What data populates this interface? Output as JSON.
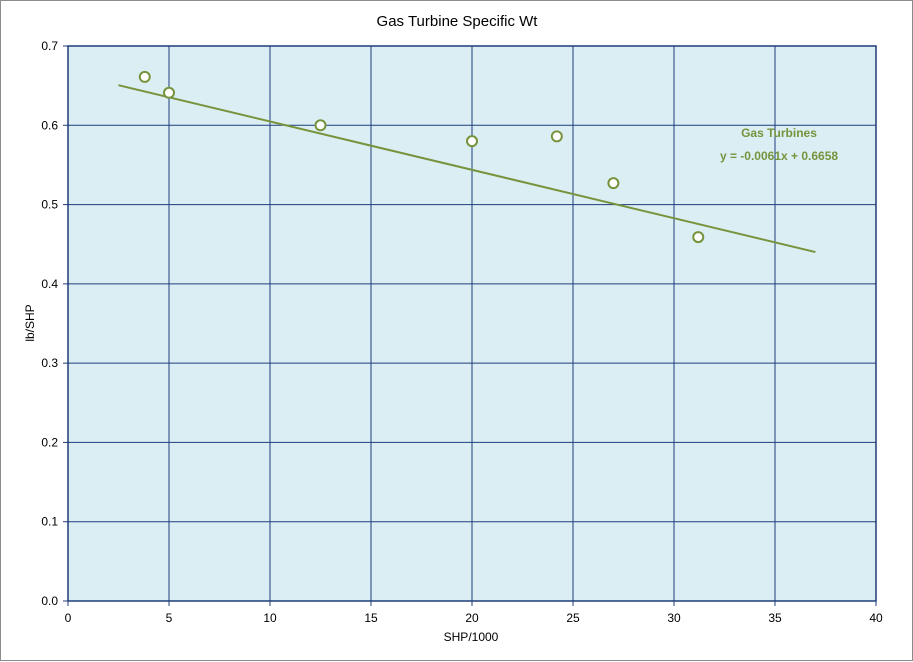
{
  "chart_data": {
    "type": "scatter",
    "title": "Gas Turbine Specific Wt",
    "xlabel": "SHP/1000",
    "ylabel": "lb/SHP",
    "xlim": [
      0,
      40
    ],
    "ylim": [
      0,
      0.7
    ],
    "x_ticks": [
      "0",
      "5",
      "10",
      "15",
      "20",
      "25",
      "30",
      "35",
      "40"
    ],
    "y_ticks": [
      "0.0",
      "0.1",
      "0.2",
      "0.3",
      "0.4",
      "0.5",
      "0.6",
      "0.7"
    ],
    "grid": true,
    "series": [
      {
        "points": [
          {
            "x": 3.8,
            "y": 0.661
          },
          {
            "x": 5.0,
            "y": 0.641
          },
          {
            "x": 12.5,
            "y": 0.6
          },
          {
            "x": 20.0,
            "y": 0.58
          },
          {
            "x": 24.2,
            "y": 0.586
          },
          {
            "x": 27.0,
            "y": 0.527
          },
          {
            "x": 31.2,
            "y": 0.459
          }
        ]
      }
    ],
    "trendline": {
      "slope": -0.0061,
      "intercept": 0.6658,
      "x_range": [
        2.5,
        37
      ],
      "label_name": "Gas Turbines",
      "label_equation": "y = -0.0061x  + 0.6658"
    },
    "colors": {
      "plot_background": "#dbeef4",
      "grid": "#1f3d7a",
      "series": "#77933c",
      "marker_fill": "#ffffff"
    }
  }
}
